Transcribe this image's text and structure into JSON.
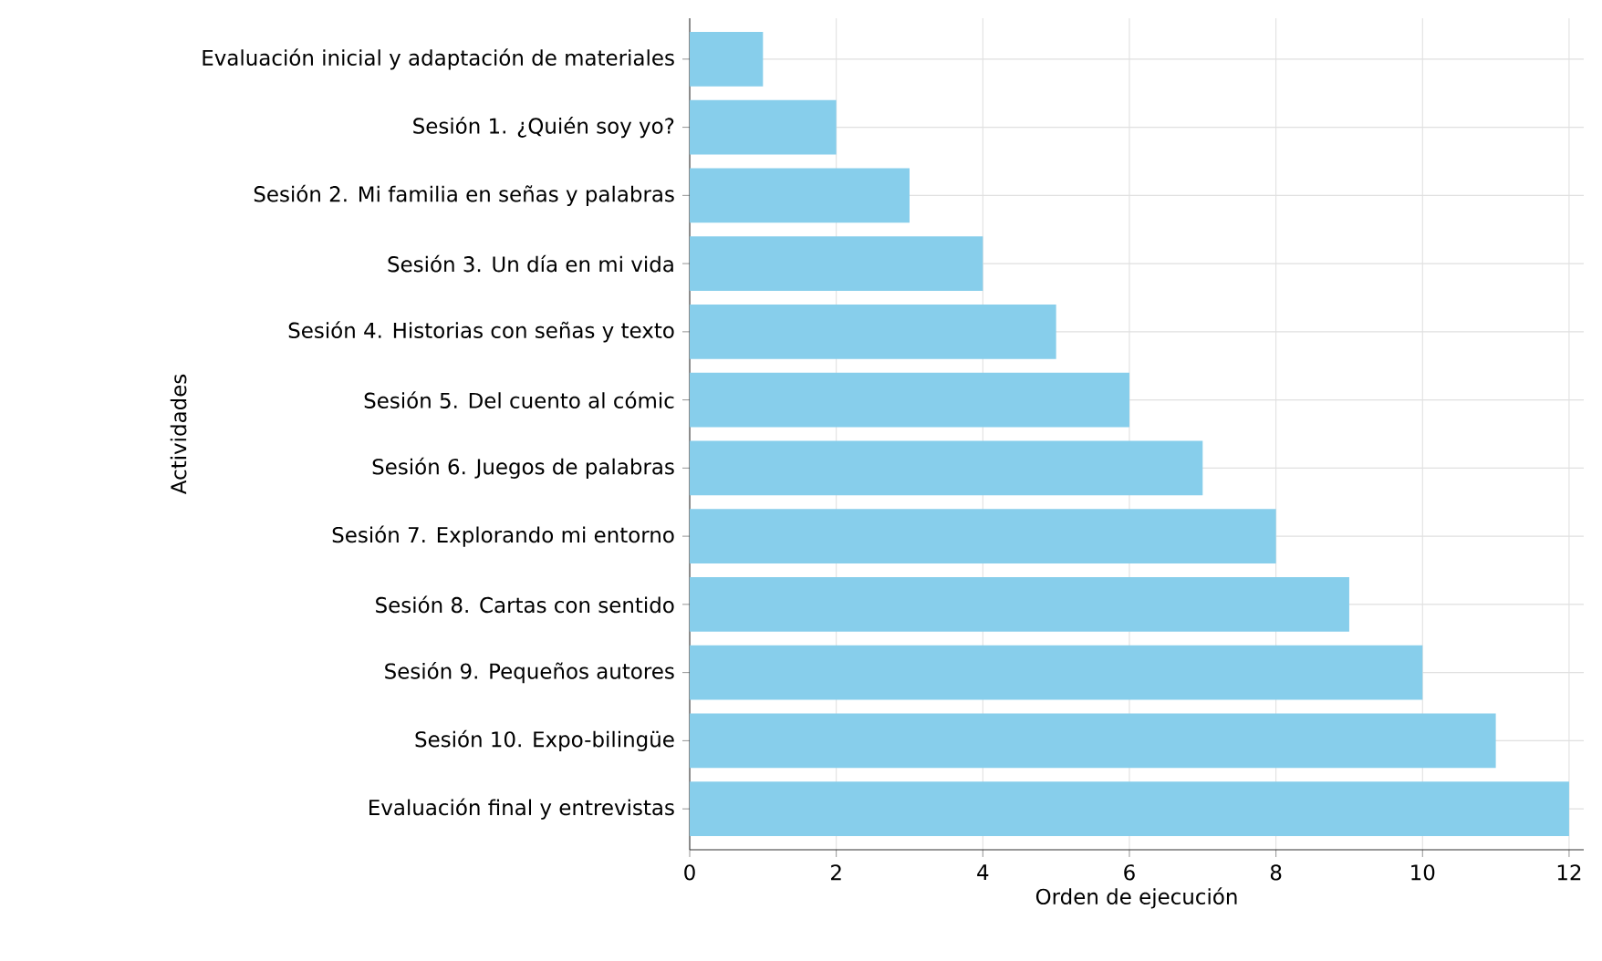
{
  "chart_data": {
    "type": "bar",
    "orientation": "horizontal",
    "xlabel": "Orden de ejecución",
    "ylabel": "Actividades",
    "categories": [
      "Evaluación inicial y adaptación de materiales",
      "Sesión 1. ¿Quién soy yo?",
      "Sesión 2. Mi familia en señas y palabras",
      "Sesión 3. Un día en mi vida",
      "Sesión 4. Historias con señas y texto",
      "Sesión 5. Del cuento al cómic",
      "Sesión 6. Juegos de palabras",
      "Sesión 7. Explorando mi entorno",
      "Sesión 8. Cartas con sentido",
      "Sesión 9. Pequeños autores",
      "Sesión 10. Expo-bilingüe",
      "Evaluación final y entrevistas"
    ],
    "values": [
      1,
      2,
      3,
      4,
      5,
      6,
      7,
      8,
      9,
      10,
      11,
      12
    ],
    "color": "#87ceeb",
    "xlim": [
      0,
      12.2
    ],
    "xticks": [
      0,
      2,
      4,
      6,
      8,
      10,
      12
    ],
    "grid": true
  }
}
